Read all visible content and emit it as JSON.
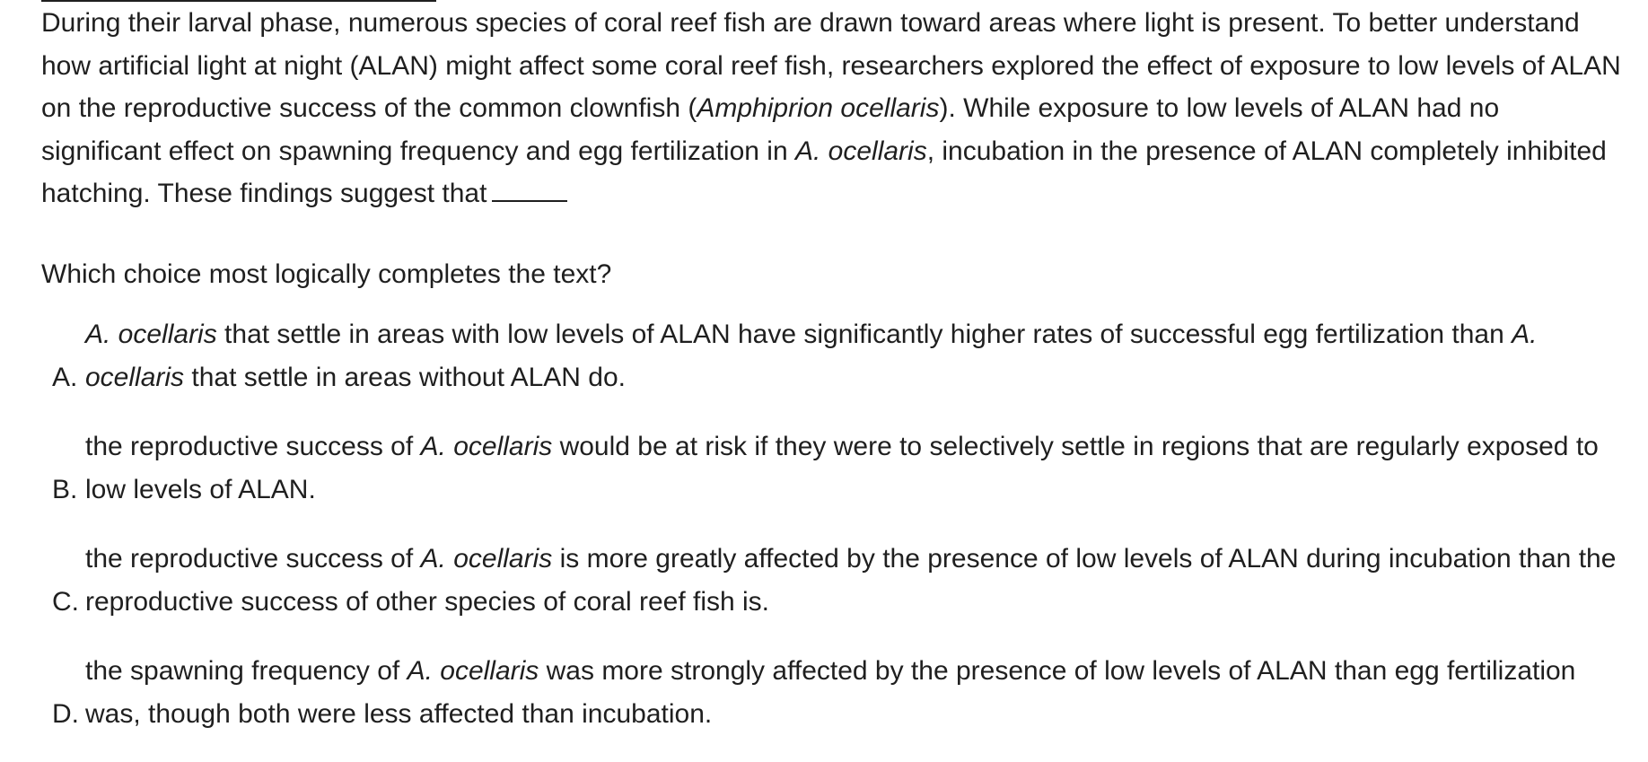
{
  "passage": {
    "s1": "During their larval phase, numerous species of coral reef fish are drawn toward areas where light is present. To better understand how artificial light at night (ALAN) might affect some coral reef fish, researchers explored the effect of exposure to low levels of ALAN on the reproductive success of the common clownfish (",
    "species_full": "Amphiprion ocellaris",
    "s2": "). While exposure to low levels of ALAN had no significant effect on spawning frequency and egg fertilization in ",
    "species_abbr": "A. ocellaris",
    "s3": ", incubation in the presence of ALAN completely inhibited hatching. These findings suggest that"
  },
  "question": "Which choice most logically completes the text?",
  "choices": [
    {
      "letter": "A.",
      "parts": [
        "A. ocellaris",
        " that settle in areas with low levels of ALAN have significantly higher rates of successful egg fertilization than ",
        "A. ocellaris",
        " that settle in areas without ALAN do."
      ]
    },
    {
      "letter": "B.",
      "parts": [
        "the reproductive success of ",
        "A. ocellaris",
        " would be at risk if they were to selectively settle in regions that are regularly exposed to low levels of ALAN."
      ]
    },
    {
      "letter": "C.",
      "parts": [
        "the reproductive success of ",
        "A. ocellaris",
        " is more greatly affected by the presence of low levels of ALAN during incubation than the reproductive success of other species of coral reef fish is."
      ]
    },
    {
      "letter": "D.",
      "parts": [
        "the spawning frequency of ",
        "A. ocellaris",
        " was more strongly affected by the presence of low levels of ALAN than egg fertilization was, though both were less affected than incubation."
      ]
    }
  ]
}
